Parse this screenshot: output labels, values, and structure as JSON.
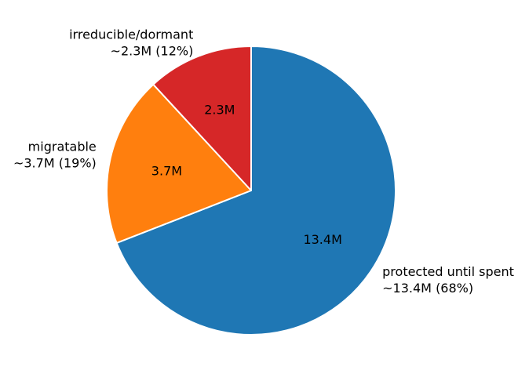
{
  "chart_data": {
    "type": "pie",
    "title": "",
    "start_angle_deg": 90,
    "direction": "clockwise",
    "slices": [
      {
        "name": "protected until spent",
        "value": 13.4,
        "pct": "68%",
        "value_label": "13.4M",
        "outer_label": [
          "protected until spent",
          "~13.4M (68%)"
        ],
        "color": "#1f77b4"
      },
      {
        "name": "migratable",
        "value": 3.7,
        "pct": "19%",
        "value_label": "3.7M",
        "outer_label": [
          "migratable",
          "~3.7M (19%)"
        ],
        "color": "#ff7f0e"
      },
      {
        "name": "irreducible/dormant",
        "value": 2.3,
        "pct": "12%",
        "value_label": "2.3M",
        "outer_label": [
          "irreducible/dormant",
          "~2.3M (12%)"
        ],
        "color": "#d62728"
      }
    ]
  }
}
